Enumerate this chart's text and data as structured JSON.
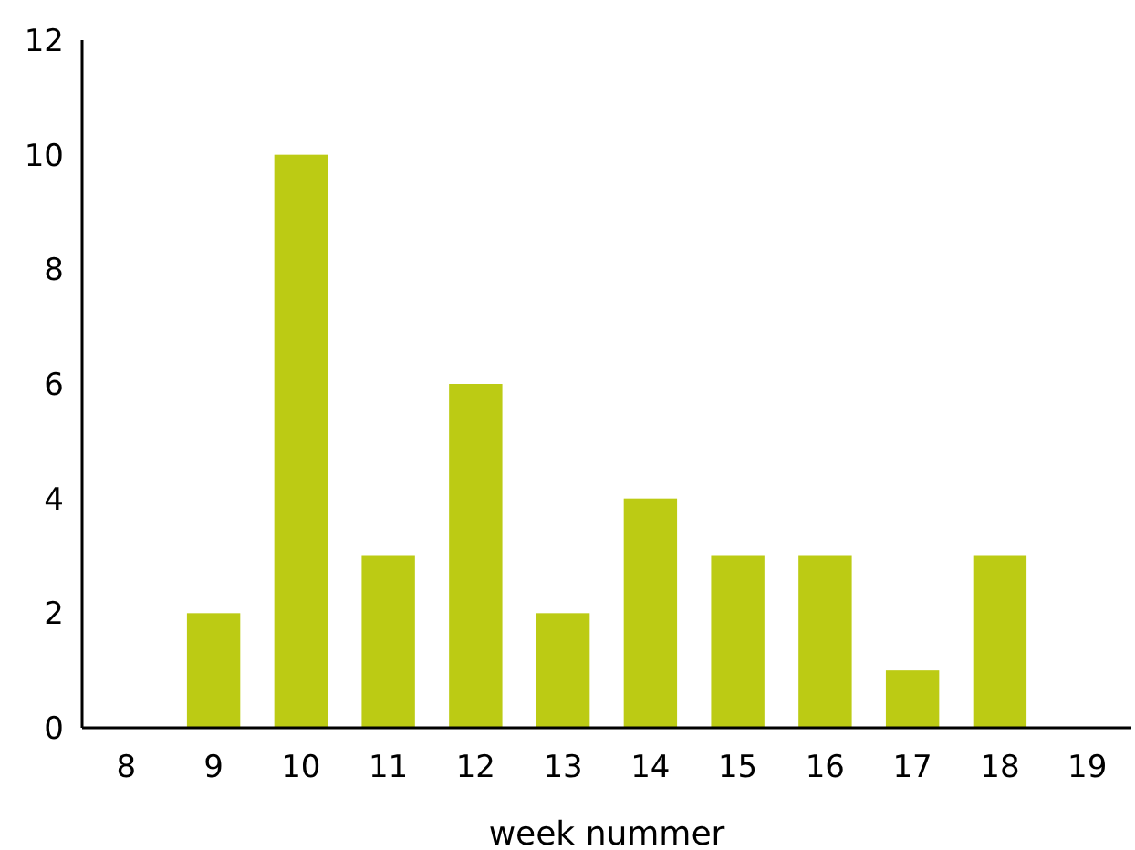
{
  "chart_data": {
    "type": "bar",
    "xlabel": "week nummer",
    "categories": [
      "8",
      "9",
      "10",
      "11",
      "12",
      "13",
      "14",
      "15",
      "16",
      "17",
      "18",
      "19"
    ],
    "values": [
      0,
      2,
      10,
      3,
      6,
      2,
      4,
      3,
      3,
      1,
      3,
      0
    ],
    "color": "#bccb14",
    "ylim": [
      0,
      12
    ],
    "yticks": [
      0,
      2,
      4,
      6,
      8,
      10,
      12
    ],
    "grid": false
  }
}
